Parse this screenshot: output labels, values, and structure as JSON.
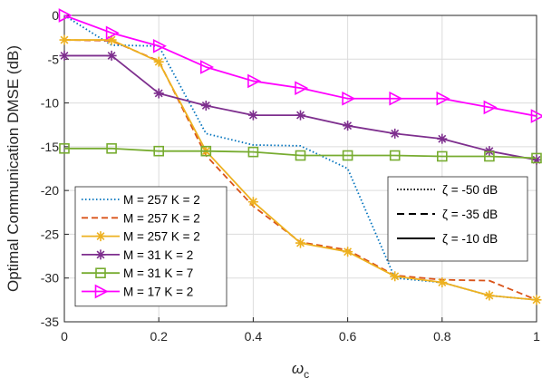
{
  "chart_data": {
    "type": "line",
    "xlabel_main": "ω",
    "xlabel_sub": "c",
    "ylabel": "Optimal Communication DMSE (dB)",
    "xlim": [
      0,
      1
    ],
    "ylim": [
      -35,
      0
    ],
    "xticks": [
      0,
      0.2,
      0.4,
      0.6,
      0.8,
      1
    ],
    "xtick_labels": [
      "0",
      "0.2",
      "0.4",
      "0.6",
      "0.8",
      "1"
    ],
    "yticks": [
      0,
      -5,
      -10,
      -15,
      -20,
      -25,
      -30,
      -35
    ],
    "ytick_labels": [
      "0",
      "-5",
      "-10",
      "-15",
      "-20",
      "-25",
      "-30",
      "-35"
    ],
    "grid": true,
    "x": [
      0,
      0.1,
      0.2,
      0.3,
      0.4,
      0.5,
      0.6,
      0.7,
      0.8,
      0.9,
      1.0
    ],
    "series": [
      {
        "name": "M = 257 K = 2",
        "color": "#0072BD",
        "dash": "dotted",
        "marker": "none",
        "values": [
          0,
          -3.4,
          -3.5,
          -13.5,
          -14.8,
          -14.9,
          -17.5,
          -30.0,
          -30.5,
          -32.0,
          -32.5
        ]
      },
      {
        "name": "M = 257 K = 2",
        "color": "#D95319",
        "dash": "dashed",
        "marker": "none",
        "values": [
          -2.8,
          -2.9,
          -5.2,
          -16.0,
          -21.8,
          -25.9,
          -26.8,
          -29.7,
          -30.2,
          -30.3,
          -32.5
        ]
      },
      {
        "name": "M = 257 K = 2",
        "color": "#EDB120",
        "dash": "solid",
        "marker": "asterisk",
        "values": [
          -2.8,
          -2.8,
          -5.3,
          -15.5,
          -21.3,
          -26.0,
          -27.0,
          -29.8,
          -30.5,
          -32.0,
          -32.5
        ]
      },
      {
        "name": "M = 31 K = 2",
        "color": "#7E2F8E",
        "dash": "solid",
        "marker": "asterisk",
        "values": [
          -4.6,
          -4.6,
          -8.9,
          -10.3,
          -11.4,
          -11.4,
          -12.6,
          -13.5,
          -14.1,
          -15.5,
          -16.5
        ]
      },
      {
        "name": "M = 31 K = 7",
        "color": "#77AC30",
        "dash": "solid",
        "marker": "square",
        "values": [
          -15.2,
          -15.2,
          -15.5,
          -15.5,
          -15.6,
          -16.0,
          -16.0,
          -16.0,
          -16.1,
          -16.1,
          -16.3
        ]
      },
      {
        "name": "M = 17 K = 2",
        "color": "#FF00FF",
        "dash": "solid",
        "marker": "triangle-right",
        "values": [
          0,
          -2.0,
          -3.5,
          -5.9,
          -7.5,
          -8.3,
          -9.5,
          -9.5,
          -9.5,
          -10.5,
          -11.5
        ]
      }
    ],
    "style_legend": [
      {
        "label": "ζ = -50 dB",
        "dash": "dotted"
      },
      {
        "label": "ζ = -35 dB",
        "dash": "dashed"
      },
      {
        "label": "ζ = -10 dB",
        "dash": "solid"
      }
    ],
    "legend_position": "bottom-left",
    "style_legend_position": "right"
  }
}
